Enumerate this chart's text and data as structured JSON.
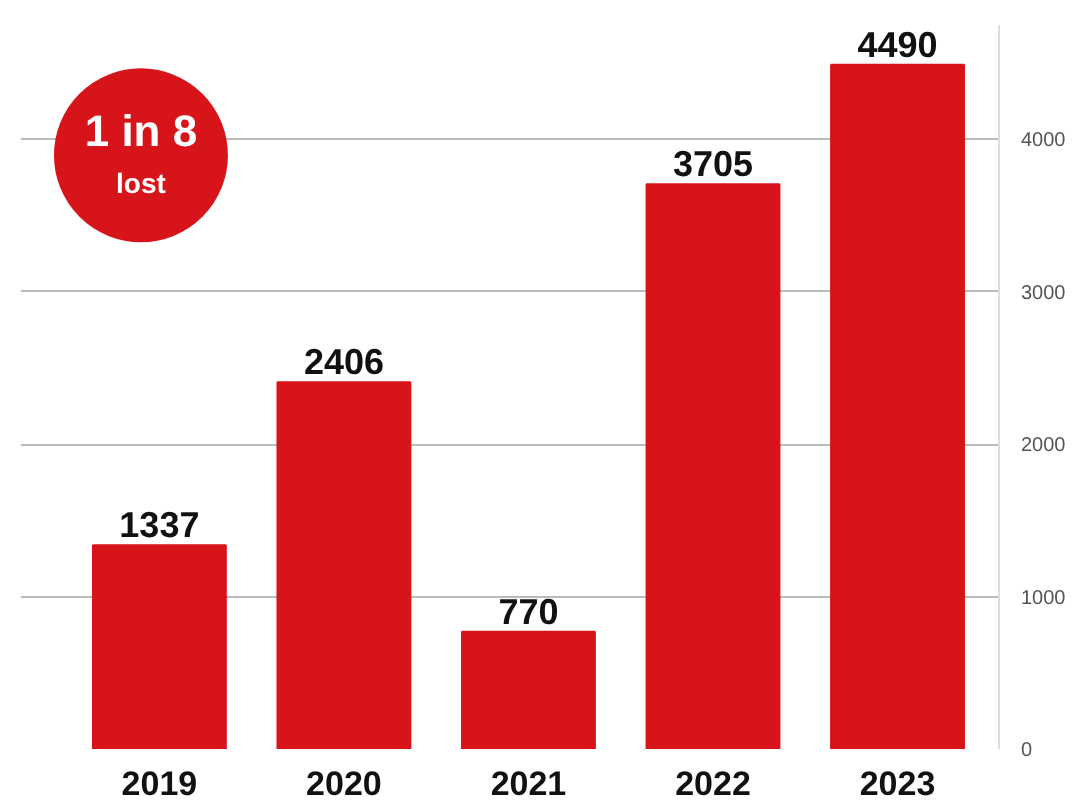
{
  "chart_data": {
    "type": "bar",
    "categories": [
      "2019",
      "2020",
      "2021",
      "2022",
      "2023"
    ],
    "values": [
      1337,
      2406,
      770,
      3705,
      4490
    ],
    "color": "#d7141a",
    "data_labels": true,
    "ylim": [
      0,
      4750
    ],
    "yticks": [
      0,
      1000,
      2000,
      3000,
      4000
    ],
    "grid": "y",
    "annotations": [
      "1 in 8",
      "lost"
    ]
  }
}
